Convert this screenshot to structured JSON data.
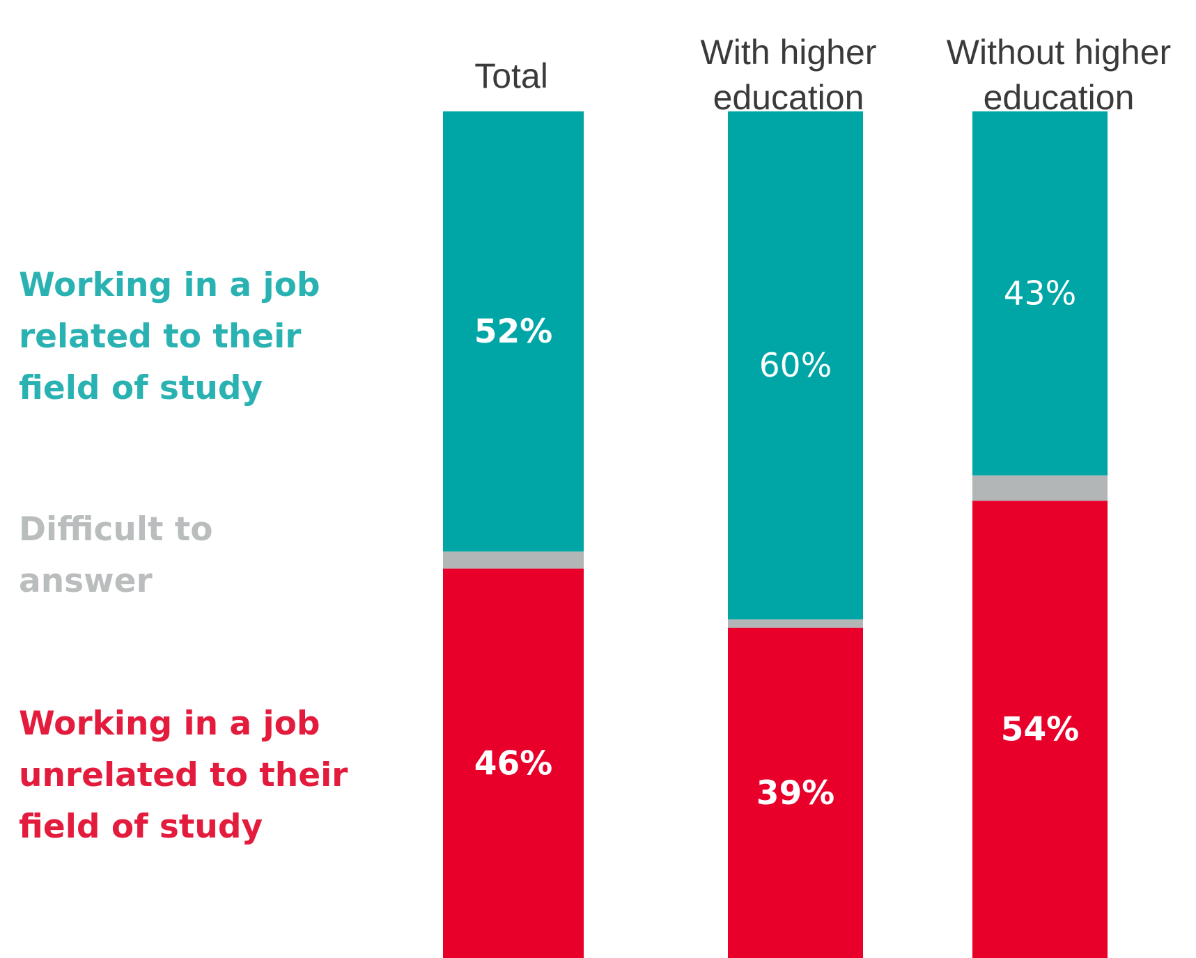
{
  "chart_data": {
    "type": "bar",
    "stacked": true,
    "orientation": "vertical",
    "categories": [
      [
        "Total"
      ],
      [
        "With higher",
        "education"
      ],
      [
        "Without higher",
        "education"
      ]
    ],
    "series": [
      {
        "key": "related",
        "name": [
          "Working in a job",
          "related to their",
          "field of study"
        ],
        "color": "#00a6a6",
        "label_color": "#2ab2b2",
        "values": [
          52,
          60,
          43
        ],
        "value_labels": [
          "52%",
          "60%",
          "43%"
        ]
      },
      {
        "key": "difficult",
        "name": [
          "Difficult to",
          "answer"
        ],
        "color": "#b3b6b6",
        "label_color": "#b9bdbd",
        "values": [
          2,
          1,
          3
        ],
        "value_labels": [
          "",
          "",
          ""
        ]
      },
      {
        "key": "unrelated",
        "name": [
          "Working in a job",
          "unrelated to their",
          "field of study"
        ],
        "color": "#e8002b",
        "label_color": "#e31b3c",
        "values": [
          46,
          39,
          54
        ],
        "value_labels": [
          "46%",
          "39%",
          "54%"
        ]
      }
    ],
    "value_label_bold": [
      [
        true,
        false,
        false
      ],
      [
        false,
        false,
        false
      ],
      [
        true,
        true,
        true
      ]
    ],
    "ylim": [
      0,
      100
    ],
    "grid": false,
    "legend": "left",
    "title": "",
    "xlabel": "",
    "ylabel": ""
  }
}
